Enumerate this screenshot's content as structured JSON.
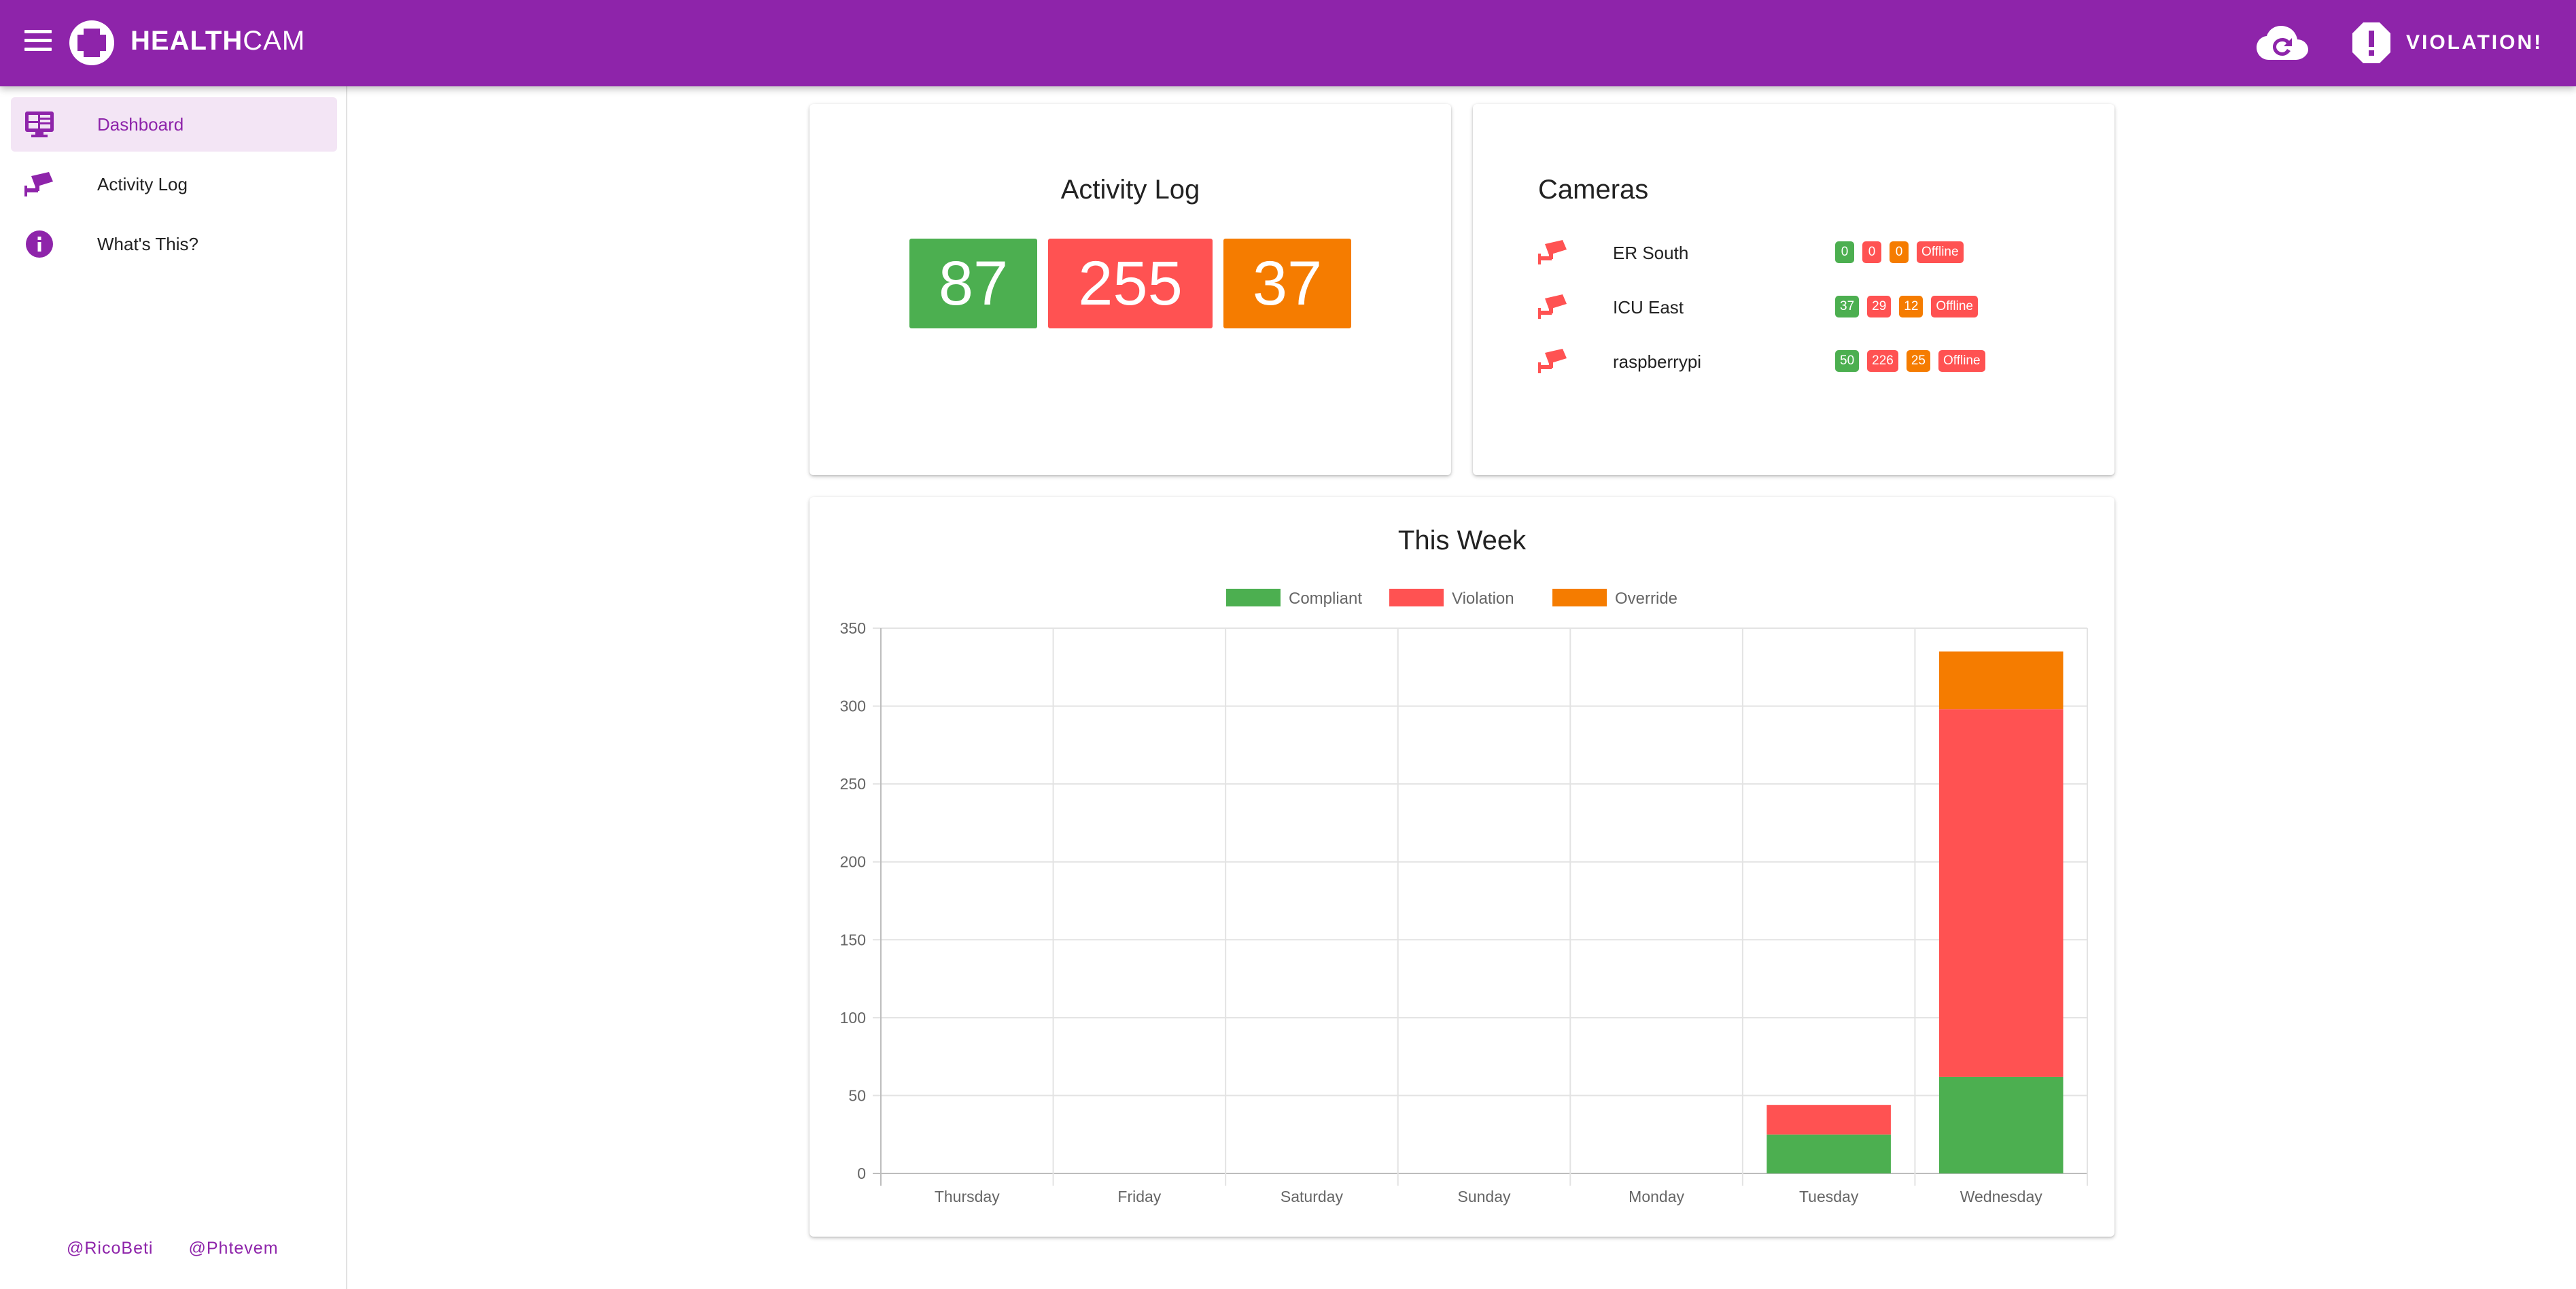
{
  "app": {
    "brand_bold": "HEALTH",
    "brand_light": "CAM",
    "violation_label": "VIOLATION!"
  },
  "sidebar": {
    "items": [
      {
        "label": "Dashboard",
        "icon": "monitor-dashboard-icon"
      },
      {
        "label": "Activity Log",
        "icon": "cctv-icon"
      },
      {
        "label": "What's This?",
        "icon": "info-icon"
      }
    ],
    "footer": [
      "@RicoBeti",
      "@Phtevem"
    ]
  },
  "activity": {
    "title": "Activity Log",
    "compliant": "87",
    "violation": "255",
    "override": "37"
  },
  "cameras": {
    "title": "Cameras",
    "items": [
      {
        "name": "ER South",
        "compliant": "0",
        "violation": "0",
        "override": "0",
        "status": "Offline"
      },
      {
        "name": "ICU East",
        "compliant": "37",
        "violation": "29",
        "override": "12",
        "status": "Offline"
      },
      {
        "name": "raspberrypi",
        "compliant": "50",
        "violation": "226",
        "override": "25",
        "status": "Offline"
      }
    ]
  },
  "colors": {
    "primary": "#8e24aa",
    "compliant": "#4caf50",
    "violation": "#ff5252",
    "override": "#f57c00"
  },
  "week": {
    "title": "This Week"
  },
  "chart_data": {
    "type": "bar",
    "stacked": true,
    "title": "This Week",
    "categories": [
      "Thursday",
      "Friday",
      "Saturday",
      "Sunday",
      "Monday",
      "Tuesday",
      "Wednesday"
    ],
    "series": [
      {
        "name": "Compliant",
        "color": "#4caf50",
        "values": [
          0,
          0,
          0,
          0,
          0,
          25,
          62
        ]
      },
      {
        "name": "Violation",
        "color": "#ff5252",
        "values": [
          0,
          0,
          0,
          0,
          0,
          19,
          236
        ]
      },
      {
        "name": "Override",
        "color": "#f57c00",
        "values": [
          0,
          0,
          0,
          0,
          0,
          0,
          37
        ]
      }
    ],
    "ylim": [
      0,
      350
    ],
    "yticks": [
      0,
      50,
      100,
      150,
      200,
      250,
      300,
      350
    ],
    "grid": true,
    "legend": "top-center"
  }
}
